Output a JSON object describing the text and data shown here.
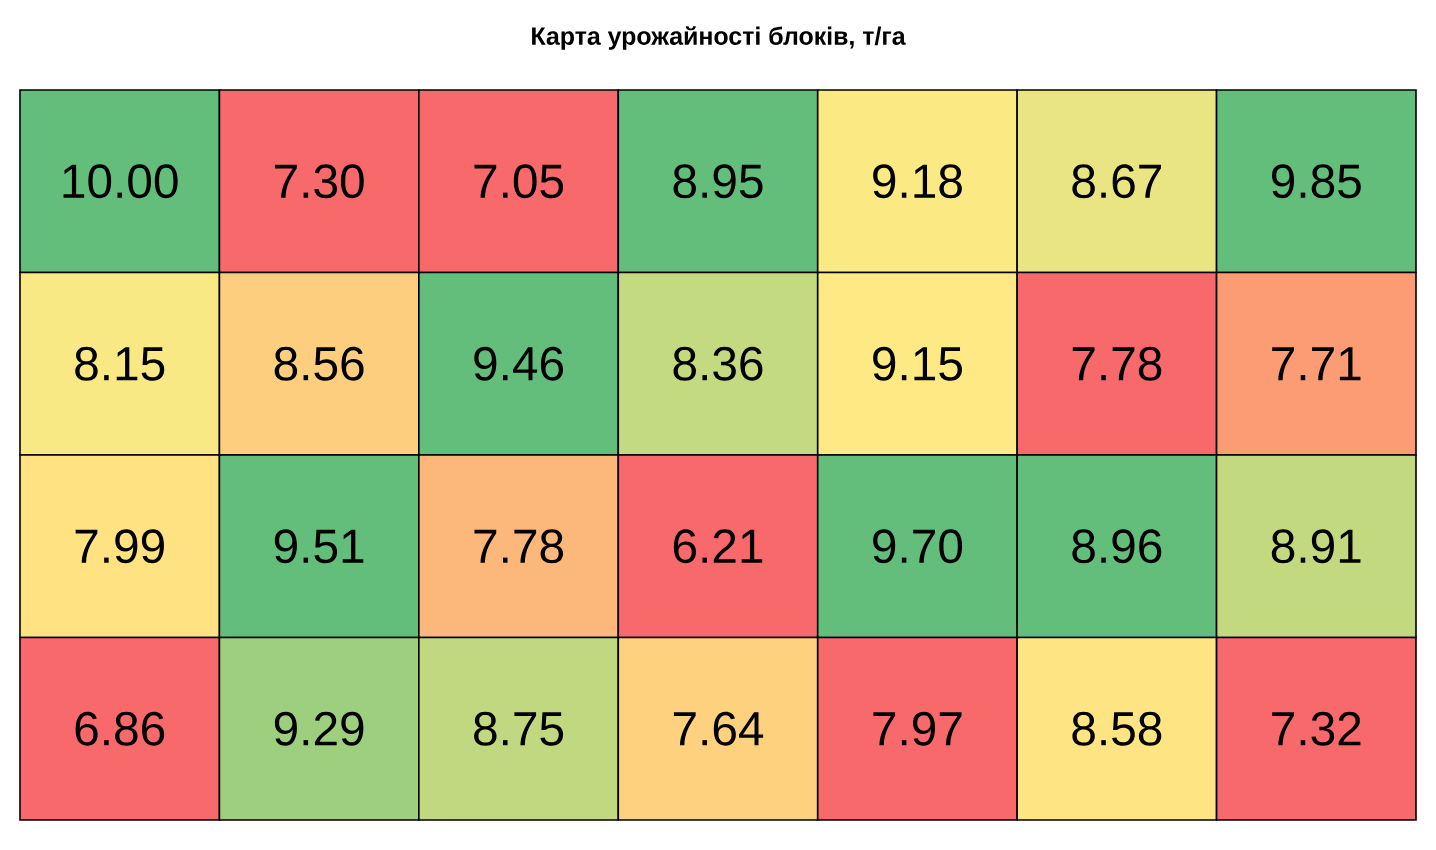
{
  "chart_data": {
    "type": "heatmap",
    "title": "Карта урожайності блоків, т/га",
    "categories": [
      null,
      null,
      null,
      null,
      null,
      null,
      null
    ],
    "y_categories": [
      null,
      null,
      null,
      null
    ],
    "cells": [
      [
        10.0,
        7.3,
        7.05,
        8.95,
        9.18,
        8.67,
        9.85
      ],
      [
        8.15,
        8.56,
        9.46,
        8.36,
        9.15,
        7.78,
        7.71
      ],
      [
        7.99,
        9.51,
        7.78,
        6.21,
        9.7,
        8.96,
        8.91
      ],
      [
        6.86,
        9.29,
        8.75,
        7.64,
        7.97,
        8.58,
        7.32
      ]
    ],
    "cell_labels": [
      [
        "10.00",
        "7.30",
        "7.05",
        "8.95",
        "9.18",
        "8.67",
        "9.85"
      ],
      [
        "8.15",
        "8.56",
        "9.46",
        "8.36",
        "9.15",
        "7.78",
        "7.71"
      ],
      [
        "7.99",
        "9.51",
        "7.78",
        "6.21",
        "9.70",
        "8.96",
        "8.91"
      ],
      [
        "6.86",
        "9.29",
        "8.75",
        "7.64",
        "7.97",
        "8.58",
        "7.32"
      ]
    ],
    "tick_labels": false
  }
}
